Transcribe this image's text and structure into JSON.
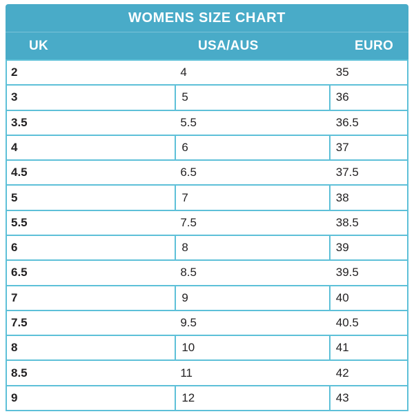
{
  "chart_data": {
    "type": "table",
    "title": "WOMENS SIZE CHART",
    "columns": [
      "UK",
      "USA/AUS",
      "EURO"
    ],
    "rows": [
      [
        "2",
        "4",
        "35"
      ],
      [
        "3",
        "5",
        "36"
      ],
      [
        "3.5",
        "5.5",
        "36.5"
      ],
      [
        "4",
        "6",
        "37"
      ],
      [
        "4.5",
        "6.5",
        "37.5"
      ],
      [
        "5",
        "7",
        "38"
      ],
      [
        "5.5",
        "7.5",
        "38.5"
      ],
      [
        "6",
        "8",
        "39"
      ],
      [
        "6.5",
        "8.5",
        "39.5"
      ],
      [
        "7",
        "9",
        "40"
      ],
      [
        "7.5",
        "9.5",
        "40.5"
      ],
      [
        "8",
        "10",
        "41"
      ],
      [
        "8.5",
        "11",
        "42"
      ],
      [
        "9",
        "12",
        "43"
      ]
    ],
    "layout_hints": {
      "header_position": "top",
      "grid": "horizontal lines every row; vertical column separators on every second row",
      "bold_column": "UK"
    }
  },
  "colors": {
    "header_bg": "#49abc8",
    "header_text": "#ffffff",
    "border": "#5dc0d8",
    "text": "#232122"
  }
}
